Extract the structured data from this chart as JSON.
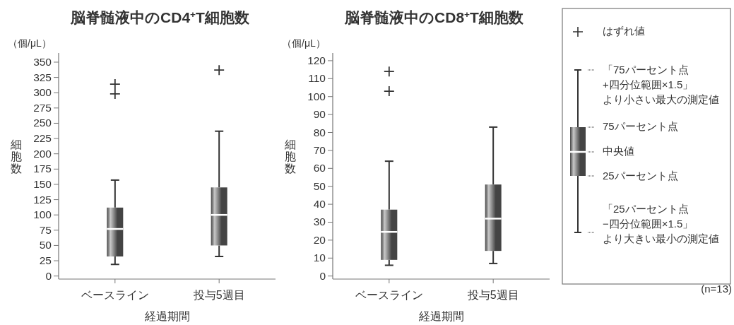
{
  "chart_data": [
    {
      "type": "box",
      "title": "脳脊髄液中のCD4$^{+}$T細胞数",
      "ylabel": "細胞数",
      "xlabel": "経過期間",
      "annotations": [
        "（個/μL）"
      ],
      "categories": [
        "ベースライン",
        "投与5週目"
      ],
      "color": "#444444",
      "marker": "cross",
      "ylim": [
        -5,
        365
      ],
      "yticks": [
        0,
        25,
        50,
        75,
        100,
        125,
        150,
        175,
        200,
        225,
        250,
        275,
        300,
        325,
        350
      ],
      "boxes": [
        {
          "low": 19,
          "q1": 32,
          "median": 77,
          "q3": 112,
          "high": 157,
          "outliers": [
            298,
            314
          ]
        },
        {
          "low": 32,
          "q1": 50,
          "median": 100,
          "q3": 145,
          "high": 237,
          "outliers": [
            337
          ]
        }
      ]
    },
    {
      "type": "box",
      "title": "脳脊髄液中のCD8$^{+}$T細胞数",
      "ylabel": "細胞数",
      "xlabel": "経過期間",
      "annotations": [
        "（個/μL）"
      ],
      "categories": [
        "ベースライン",
        "投与5週目"
      ],
      "color": "#444444",
      "marker": "cross",
      "ylim": [
        -1.7,
        124.3
      ],
      "yticks": [
        0,
        10,
        20,
        30,
        40,
        50,
        60,
        70,
        80,
        90,
        100,
        110,
        120
      ],
      "boxes": [
        {
          "low": 6,
          "q1": 9,
          "median": 24.6,
          "q3": 37,
          "high": 64,
          "outliers": [
            103,
            114
          ]
        },
        {
          "low": 7,
          "q1": 14,
          "median": 32,
          "q3": 51,
          "high": 83
        }
      ]
    },
    {
      "type": "other",
      "annotations": [
        "はずれ値",
        "「75パーセント点",
        "+四分位範囲×1.5」",
        "より小さい最大の測定値",
        "75パーセント点",
        "中央値",
        "25パーセント点",
        "「25パーセント点",
        "−四分位範囲×1.5」",
        "より大きい最小の測定値",
        "(n=13)"
      ]
    }
  ]
}
